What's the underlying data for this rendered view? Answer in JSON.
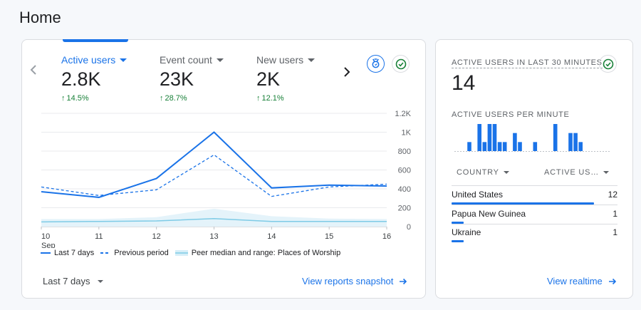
{
  "page": {
    "title": "Home"
  },
  "overview": {
    "metrics": [
      {
        "label": "Active users",
        "value": "2.8K",
        "delta": "14.5%"
      },
      {
        "label": "Event count",
        "value": "23K",
        "delta": "28.7%"
      },
      {
        "label": "New users",
        "value": "2K",
        "delta": "12.1%"
      }
    ],
    "icons": {
      "prev": "chevron-left-icon",
      "next": "chevron-right-icon",
      "insights": "insights-badge-icon",
      "status": "check-circle-icon"
    },
    "legend": {
      "current": "Last 7 days",
      "previous": "Previous period",
      "peer": "Peer median and range: Places of Worship"
    },
    "date_range": "Last 7 days",
    "snapshot_link": "View reports snapshot",
    "colors": {
      "accent": "#1a73e8",
      "peer": "#7ecbe6",
      "positive": "#188038"
    }
  },
  "chart_data": {
    "type": "line",
    "x": [
      "10",
      "11",
      "12",
      "13",
      "14",
      "15",
      "16"
    ],
    "x_sublabel": "Sep",
    "y_ticks": [
      "0",
      "200",
      "400",
      "600",
      "800",
      "1K",
      "1.2K"
    ],
    "ylim": [
      0,
      1200
    ],
    "y_axis_position": "right",
    "series": [
      {
        "name": "Last 7 days",
        "style": "solid",
        "values": [
          370,
          310,
          510,
          1000,
          410,
          440,
          430
        ]
      },
      {
        "name": "Previous period",
        "style": "dashed",
        "values": [
          420,
          330,
          390,
          760,
          320,
          420,
          450
        ]
      },
      {
        "name": "Peer median and range: Places of Worship",
        "style": "solid-light",
        "values": [
          50,
          55,
          60,
          85,
          55,
          55,
          55
        ],
        "range_high": [
          80,
          80,
          100,
          190,
          110,
          85,
          80
        ]
      }
    ]
  },
  "realtime": {
    "title": "ACTIVE USERS IN LAST 30 MINUTES",
    "value": "14",
    "per_minute_label": "ACTIVE USERS PER MINUTE",
    "per_minute": [
      0,
      0,
      1,
      0,
      3,
      1,
      3,
      3,
      1,
      1,
      0,
      2,
      1,
      0,
      0,
      1,
      0,
      0,
      0,
      3,
      0,
      0,
      2,
      2,
      1,
      0
    ],
    "columns": {
      "country": "COUNTRY",
      "active": "ACTIVE US…"
    },
    "rows": [
      {
        "country": "United States",
        "count": "12",
        "share": 0.857
      },
      {
        "country": "Papua New Guinea",
        "count": "1",
        "share": 0.071
      },
      {
        "country": "Ukraine",
        "count": "1",
        "share": 0.071
      }
    ],
    "link": "View realtime",
    "status_icon": "check-circle-icon"
  }
}
